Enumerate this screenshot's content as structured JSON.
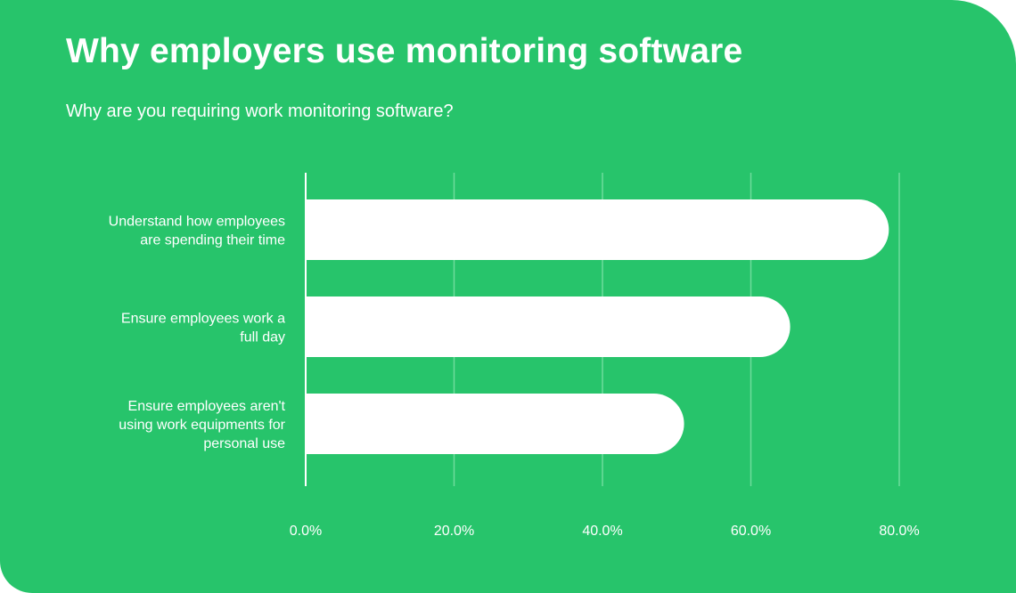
{
  "title": "Why employers use monitoring software",
  "subtitle": "Why are you requiring work monitoring software?",
  "colors": {
    "background": "#27c46b",
    "bar": "#ffffff",
    "gridline": "#6fdc9c",
    "text": "#ffffff"
  },
  "chart_data": {
    "type": "bar",
    "orientation": "horizontal",
    "categories": [
      "Understand how employees are spending their time",
      "Ensure employees work a full day",
      "Ensure employees aren't using work equipments for personal use"
    ],
    "category_lines": [
      [
        "Understand how employees",
        "are spending their time"
      ],
      [
        "Ensure employees work a",
        "full day"
      ],
      [
        "Ensure employees aren't",
        "using work equipments for",
        "personal use"
      ]
    ],
    "values": [
      78.6,
      65.3,
      51.0
    ],
    "xlim": [
      0,
      80
    ],
    "xticks": [
      0,
      20,
      40,
      60,
      80
    ],
    "xtick_labels": [
      "0.0%",
      "20.0%",
      "40.0%",
      "60.0%",
      "80.0%"
    ],
    "grid": true,
    "legend": "none"
  }
}
